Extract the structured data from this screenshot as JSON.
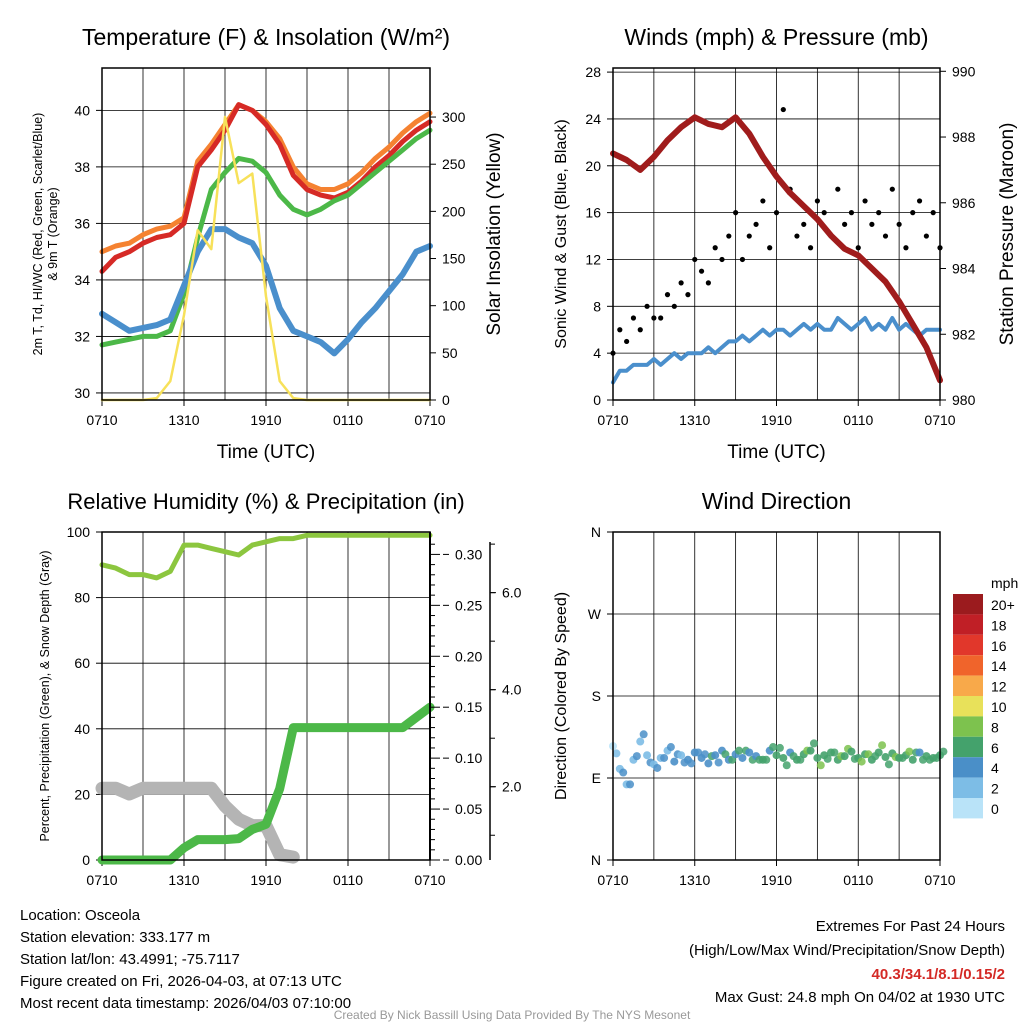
{
  "footer": {
    "location": "Location: Osceola",
    "elevation": "Station elevation: 333.177 m",
    "latlon": "Station lat/lon: 43.4991; -75.7117",
    "created": "Figure created on Fri, 2026-04-03, at 07:13 UTC",
    "recent": "Most recent data timestamp: 2026/04/03 07:10:00",
    "extremes_title": "Extremes For Past 24 Hours",
    "extremes_sub": "(High/Low/Max Wind/Precipitation/Snow Depth)",
    "extremes_values": "40.3/34.1/8.1/0.15/2",
    "max_gust": "Max Gust: 24.8 mph On 04/02 at 1930 UTC",
    "credit": "Created By Nick Bassill Using Data Provided By The NYS Mesonet"
  },
  "colors": {
    "red": "#d62a26",
    "orange": "#f58231",
    "green": "#4cb848",
    "blue": "#4a8fcc",
    "yellow": "#f7e15a",
    "maroon": "#a01c1c",
    "rh": "#8cc63f",
    "precip": "#4cb848",
    "snow": "#b4b4b4",
    "gust": "#000000"
  },
  "chart_data": [
    {
      "type": "line",
      "title": "Temperature (F) & Insolation (W/m²)",
      "xlabel": "Time (UTC)",
      "ylabel_line1": "2m T, Td, HI/WC (Red, Green, Scarlet/Blue)",
      "ylabel_line2": "& 9m T (Orange)",
      "ylabel_right": "Solar Insolation (Yellow)",
      "x_ticks": [
        "0710",
        "1310",
        "1910",
        "0110",
        "0710"
      ],
      "x_hours": 24,
      "y_ticks": [
        30,
        32,
        34,
        36,
        38,
        40
      ],
      "ylim": [
        29.75,
        41.5
      ],
      "y2_ticks": [
        0,
        50,
        100,
        150,
        200,
        250,
        300
      ],
      "y2lim": [
        0,
        352
      ],
      "series": [
        {
          "name": "9m T",
          "color": "#f58231",
          "axis": "left",
          "values": [
            35.0,
            35.2,
            35.3,
            35.6,
            35.8,
            35.9,
            36.2,
            38.2,
            38.8,
            39.5,
            40.2,
            40.0,
            39.6,
            39.0,
            38.0,
            37.4,
            37.2,
            37.2,
            37.4,
            37.8,
            38.3,
            38.7,
            39.2,
            39.6,
            39.9
          ]
        },
        {
          "name": "2m T",
          "color": "#d62a26",
          "axis": "left",
          "values": [
            34.3,
            34.8,
            35.0,
            35.3,
            35.5,
            35.6,
            36.0,
            38.0,
            38.6,
            39.3,
            40.2,
            40.0,
            39.5,
            38.8,
            37.7,
            37.2,
            37.0,
            36.9,
            37.1,
            37.5,
            38.0,
            38.4,
            38.9,
            39.3,
            39.6
          ]
        },
        {
          "name": "Td",
          "color": "#4cb848",
          "axis": "left",
          "values": [
            31.7,
            31.8,
            31.9,
            32.0,
            32.0,
            32.2,
            33.5,
            35.5,
            37.2,
            37.8,
            38.3,
            38.2,
            37.8,
            37.0,
            36.5,
            36.3,
            36.5,
            36.8,
            37.0,
            37.4,
            37.8,
            38.2,
            38.6,
            39.0,
            39.3
          ]
        },
        {
          "name": "Wind Chill",
          "color": "#4a8fcc",
          "axis": "left",
          "values": [
            32.8,
            32.5,
            32.2,
            32.3,
            32.4,
            32.6,
            33.8,
            35.0,
            35.8,
            35.8,
            35.5,
            35.3,
            34.5,
            33.0,
            32.2,
            32.0,
            31.8,
            31.4,
            31.9,
            32.5,
            33.0,
            33.6,
            34.2,
            35.0,
            35.2
          ]
        },
        {
          "name": "Solar Insolation",
          "color": "#f7e15a",
          "axis": "right",
          "values": [
            0,
            0,
            0,
            0,
            2,
            20,
            90,
            180,
            160,
            300,
            230,
            240,
            110,
            20,
            2,
            0,
            0,
            0,
            0,
            0,
            0,
            0,
            0,
            0,
            0
          ]
        }
      ]
    },
    {
      "type": "line",
      "title": "Winds (mph) & Pressure (mb)",
      "xlabel": "Time (UTC)",
      "ylabel": "Sonic Wind & Gust (Blue, Black)",
      "ylabel_right": "Station Pressure (Maroon)",
      "x_ticks": [
        "0710",
        "1310",
        "1910",
        "0110",
        "0710"
      ],
      "x_hours": 24,
      "y_ticks": [
        0,
        4,
        8,
        12,
        16,
        20,
        24,
        28
      ],
      "ylim": [
        0,
        28.35
      ],
      "y2_ticks": [
        980,
        982,
        984,
        986,
        988,
        990
      ],
      "y2lim": [
        980,
        990.1
      ],
      "series": [
        {
          "name": "Sonic Wind",
          "color": "#4a8fcc",
          "axis": "left",
          "kind": "line",
          "values": [
            1.5,
            2.5,
            2.5,
            3,
            3,
            3,
            3.5,
            3,
            3.5,
            4,
            3.5,
            4,
            4,
            4,
            4.5,
            4,
            4.5,
            5,
            5,
            5.5,
            5,
            5.5,
            6,
            5.5,
            6,
            6,
            5.5,
            6,
            6.5,
            6,
            6.5,
            6,
            6,
            7,
            6.5,
            6,
            6.5,
            7,
            6,
            6.5,
            6,
            7,
            6,
            6.5,
            6,
            5.5,
            6,
            6,
            6
          ]
        },
        {
          "name": "Gust",
          "color": "#000000",
          "axis": "left",
          "kind": "scatter",
          "values": [
            4,
            6,
            5,
            7,
            6,
            8,
            7,
            7,
            9,
            8,
            10,
            9,
            12,
            11,
            10,
            13,
            12,
            14,
            16,
            12,
            14,
            15,
            17,
            13,
            16,
            24.8,
            18,
            14,
            15,
            13,
            17,
            16,
            14,
            18,
            15,
            16,
            13,
            17,
            15,
            16,
            14,
            18,
            15,
            13,
            16,
            17,
            14,
            16,
            13
          ]
        },
        {
          "name": "Station Pressure",
          "color": "#a01c1c",
          "axis": "right",
          "kind": "line",
          "values": [
            987.5,
            987.3,
            987.0,
            987.4,
            987.9,
            988.3,
            988.6,
            988.4,
            988.3,
            988.6,
            988.1,
            987.4,
            986.8,
            986.3,
            985.9,
            985.5,
            985.0,
            984.6,
            984.4,
            984.0,
            983.6,
            983.0,
            982.3,
            981.6,
            980.6
          ]
        }
      ]
    },
    {
      "type": "line",
      "title": "Relative Humidity (%) & Precipitation (in)",
      "ylabel": "Percent, Precipitation (Green), & Snow Depth (Gray)",
      "x_ticks": [
        "0710",
        "1310",
        "1910",
        "0110",
        "0710"
      ],
      "x_hours": 24,
      "y_ticks": [
        0,
        20,
        40,
        60,
        80,
        100
      ],
      "ylim": [
        0,
        100
      ],
      "y2_ticks": [
        "0.00",
        "0.05",
        "0.10",
        "0.15",
        "0.20",
        "0.25",
        "0.30"
      ],
      "y2lim": [
        0,
        0.322
      ],
      "y3_ticks": [
        "2.0",
        "4.0",
        "6.0"
      ],
      "y3lim": [
        0.49,
        7.25
      ],
      "series": [
        {
          "name": "Relative Humidity",
          "color": "#8cc63f",
          "axis": "left",
          "values": [
            90,
            89,
            87,
            87,
            86,
            88,
            96,
            96,
            95,
            94,
            93,
            96,
            97,
            98,
            98,
            99,
            99,
            99,
            99,
            99,
            99,
            99,
            99,
            99,
            99
          ]
        },
        {
          "name": "Precipitation",
          "color": "#4cb848",
          "axis": "precip",
          "values": [
            0,
            0,
            0,
            0,
            0,
            0,
            0.012,
            0.02,
            0.02,
            0.02,
            0.021,
            0.03,
            0.035,
            0.07,
            0.13,
            0.13,
            0.13,
            0.13,
            0.13,
            0.13,
            0.13,
            0.13,
            0.13,
            0.14,
            0.15
          ]
        },
        {
          "name": "Snow Depth",
          "color": "#b4b4b4",
          "axis": "snow",
          "values": [
            1.97,
            1.97,
            1.85,
            1.97,
            1.97,
            1.97,
            1.97,
            1.97,
            1.97,
            1.6,
            1.33,
            1.2,
            1.2,
            0.6,
            0.55,
            null,
            null,
            null,
            null,
            null,
            null,
            null,
            null,
            null,
            null
          ]
        }
      ]
    },
    {
      "type": "scatter",
      "title": "Wind Direction",
      "ylabel": "Direction (Colored By Speed)",
      "x_ticks": [
        "0710",
        "1310",
        "1910",
        "0110",
        "0710"
      ],
      "x_hours": 24,
      "y_ticks": [
        "N",
        "E",
        "S",
        "W",
        "N"
      ],
      "ylim": [
        0,
        360
      ],
      "direction_deg": [
        125,
        100,
        83,
        110,
        130,
        115,
        105,
        112,
        120,
        108,
        115,
        110,
        118,
        112,
        106,
        115,
        120,
        110,
        116,
        112,
        118,
        114,
        110,
        120,
        115,
        112,
        118,
        110,
        116,
        120,
        112,
        115,
        118,
        110,
        114,
        119,
        112,
        116,
        110,
        118,
        113,
        117,
        112,
        115,
        110,
        118,
        114,
        112,
        115
      ],
      "speed_mph": [
        1.5,
        2.5,
        2.5,
        3,
        3,
        3,
        3.5,
        3,
        3.5,
        4,
        3.5,
        4,
        4,
        4,
        4.5,
        4,
        4.5,
        5,
        5,
        5.5,
        5,
        5.5,
        6,
        5.5,
        6,
        6,
        5.5,
        6,
        6.5,
        6,
        6.5,
        6,
        6,
        7,
        6.5,
        6,
        6.5,
        7,
        6,
        6.5,
        6,
        7,
        6,
        6.5,
        6,
        5.5,
        6,
        6,
        6
      ],
      "colorbar": {
        "title": "mph",
        "labels": [
          "20+",
          "18",
          "16",
          "14",
          "12",
          "10",
          "8",
          "6",
          "4",
          "2",
          "0"
        ],
        "colors": [
          "#9b1b1e",
          "#c01f26",
          "#e1372b",
          "#f0642b",
          "#f8a94a",
          "#e8e15a",
          "#7dc24e",
          "#44a26c",
          "#4a8fc8",
          "#7dbde6",
          "#b9e3f8"
        ]
      }
    }
  ]
}
